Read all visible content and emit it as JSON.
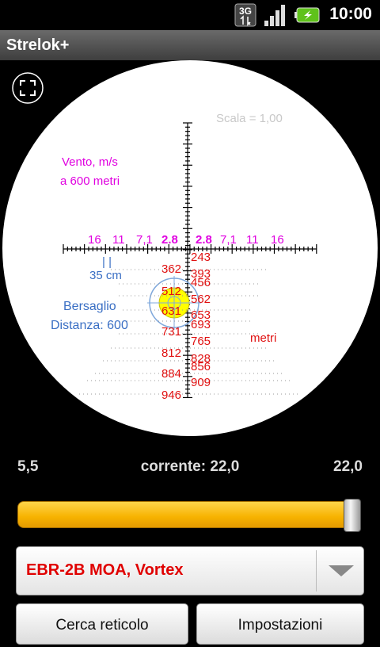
{
  "status": {
    "time": "10:00",
    "network": "3G"
  },
  "app": {
    "title": "Strelok+"
  },
  "scope": {
    "scale_label": "Scala = 1,00",
    "wind_label_line1": "Vento, m/s",
    "wind_label_line2": "a 600 metri",
    "wind_values_left": [
      "16",
      "11",
      "7,1",
      "2.8"
    ],
    "wind_values_right": [
      "2.8",
      "7,1",
      "11",
      "16"
    ],
    "target_width": "35 cm",
    "target_width_marks": "| |",
    "target_label": "Bersaglio",
    "target_distance": "Distanza: 600",
    "units_label": "metri",
    "distances_left": [
      "362",
      "512",
      "631",
      "731",
      "812",
      "884",
      "946"
    ],
    "distances_right": [
      "243",
      "393",
      "456",
      "562",
      "653",
      "693",
      "765",
      "828",
      "856",
      "909"
    ]
  },
  "zoom": {
    "min": "5,5",
    "current": "corrente: 22,0",
    "max": "22,0",
    "level": 1.0
  },
  "reticle": {
    "selected": "EBR-2B MOA, Vortex"
  },
  "buttons": {
    "search": "Cerca reticolo",
    "settings": "Impostazioni"
  }
}
